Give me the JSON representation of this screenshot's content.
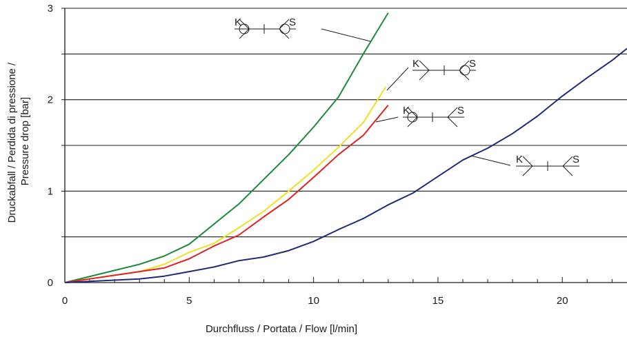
{
  "chart_data": {
    "type": "line",
    "xlabel": "Durchfluss / Portata / Flow [l/min]",
    "ylabel": [
      "Druckabfall / Perdida di pressione /",
      "Pressure drop [bar]"
    ],
    "xlim": [
      0,
      22.6
    ],
    "ylim": [
      0,
      3
    ],
    "x_ticks": [
      0,
      5,
      10,
      15,
      20
    ],
    "y_ticks": [
      0,
      1,
      2,
      3
    ],
    "grid": "horizontal every 0.5 bar",
    "series": [
      {
        "color": "#1a8a3a",
        "symbol": {
          "left": "K",
          "right": "S"
        },
        "points": [
          [
            0,
            0
          ],
          [
            3,
            0.2
          ],
          [
            4,
            0.29
          ],
          [
            5,
            0.42
          ],
          [
            7,
            0.86
          ],
          [
            9,
            1.4
          ],
          [
            10,
            1.7
          ],
          [
            11,
            2.03
          ],
          [
            12,
            2.5
          ],
          [
            13,
            2.95
          ]
        ]
      },
      {
        "color": "#f0e020",
        "symbol": {
          "left": "K",
          "right": "S"
        },
        "points": [
          [
            0,
            0
          ],
          [
            3,
            0.12
          ],
          [
            4,
            0.2
          ],
          [
            5,
            0.33
          ],
          [
            6,
            0.43
          ],
          [
            7,
            0.6
          ],
          [
            8,
            0.78
          ],
          [
            9,
            1.0
          ],
          [
            10,
            1.23
          ],
          [
            11,
            1.48
          ],
          [
            12,
            1.75
          ],
          [
            12.9,
            2.14
          ]
        ]
      },
      {
        "color": "#e02020",
        "symbol": {
          "left": "K",
          "right": "S"
        },
        "points": [
          [
            0,
            0
          ],
          [
            3,
            0.12
          ],
          [
            4,
            0.16
          ],
          [
            5,
            0.26
          ],
          [
            6,
            0.4
          ],
          [
            7,
            0.52
          ],
          [
            8,
            0.72
          ],
          [
            9,
            0.91
          ],
          [
            10,
            1.15
          ],
          [
            11,
            1.4
          ],
          [
            12,
            1.61
          ],
          [
            13,
            1.94
          ]
        ]
      },
      {
        "color": "#1e2a78",
        "symbol": {
          "left": "K",
          "right": "S"
        },
        "points": [
          [
            0,
            0
          ],
          [
            3,
            0.04
          ],
          [
            4,
            0.07
          ],
          [
            5,
            0.12
          ],
          [
            6,
            0.17
          ],
          [
            7,
            0.24
          ],
          [
            8,
            0.28
          ],
          [
            9,
            0.35
          ],
          [
            10,
            0.45
          ],
          [
            11,
            0.58
          ],
          [
            12,
            0.7
          ],
          [
            13,
            0.85
          ],
          [
            14,
            0.98
          ],
          [
            15,
            1.16
          ],
          [
            16,
            1.34
          ],
          [
            17,
            1.47
          ],
          [
            18,
            1.63
          ],
          [
            19,
            1.82
          ],
          [
            20,
            2.04
          ],
          [
            21,
            2.24
          ],
          [
            22,
            2.43
          ],
          [
            22.6,
            2.56
          ]
        ]
      }
    ]
  }
}
